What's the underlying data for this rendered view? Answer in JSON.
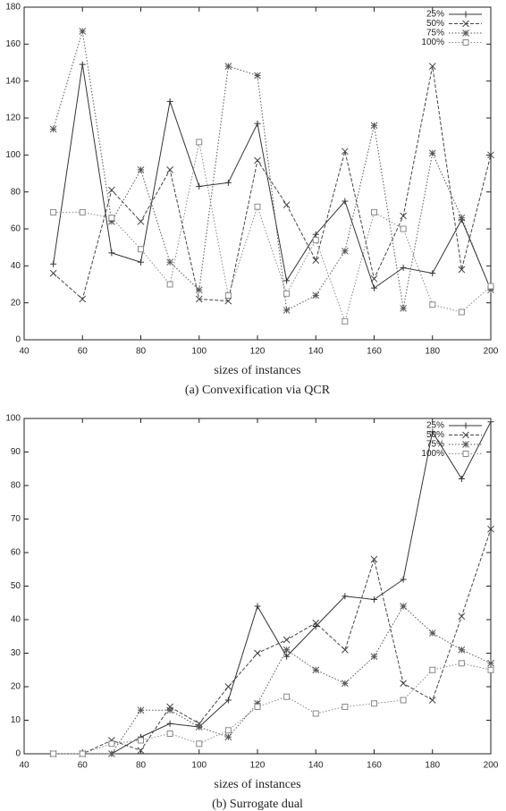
{
  "chart_data": [
    {
      "type": "line",
      "xlabel": "sizes of instances",
      "caption": "(a) Convexification via QCR",
      "x": [
        50,
        60,
        70,
        80,
        90,
        100,
        110,
        120,
        130,
        140,
        150,
        160,
        170,
        180,
        190,
        200
      ],
      "xlim": [
        40,
        200
      ],
      "xticks": [
        40,
        60,
        80,
        100,
        120,
        140,
        160,
        180,
        200
      ],
      "ylim": [
        0,
        180
      ],
      "yticks": [
        0,
        20,
        40,
        60,
        80,
        100,
        120,
        140,
        160,
        180
      ],
      "grid": false,
      "legend": "top-right",
      "series": [
        {
          "name": "25%",
          "color": "#333333",
          "line_style": "solid",
          "marker": "plus",
          "values": [
            41,
            149,
            47,
            42,
            129,
            83,
            85,
            117,
            32,
            57,
            75,
            28,
            39,
            36,
            65,
            27
          ]
        },
        {
          "name": "50%",
          "color": "#444444",
          "line_style": "dashed",
          "marker": "x",
          "values": [
            36,
            22,
            81,
            64,
            92,
            22,
            21,
            97,
            73,
            43,
            102,
            33,
            67,
            148,
            38,
            100
          ]
        },
        {
          "name": "75%",
          "color": "#555555",
          "line_style": "dotted",
          "marker": "star",
          "values": [
            114,
            167,
            64,
            92,
            42,
            27,
            148,
            143,
            16,
            24,
            48,
            116,
            17,
            101,
            66,
            27
          ]
        },
        {
          "name": "100%",
          "color": "#888888",
          "line_style": "dotted",
          "marker": "square",
          "values": [
            69,
            69,
            66,
            49,
            30,
            107,
            24,
            72,
            25,
            54,
            10,
            69,
            60,
            19,
            15,
            29
          ]
        }
      ]
    },
    {
      "type": "line",
      "xlabel": "sizes of instances",
      "caption": "(b) Surrogate dual",
      "x": [
        50,
        60,
        70,
        80,
        90,
        100,
        110,
        120,
        130,
        140,
        150,
        160,
        170,
        180,
        190,
        200
      ],
      "xlim": [
        40,
        200
      ],
      "xticks": [
        40,
        60,
        80,
        100,
        120,
        140,
        160,
        180,
        200
      ],
      "ylim": [
        0,
        100
      ],
      "yticks": [
        0,
        10,
        20,
        30,
        40,
        50,
        60,
        70,
        80,
        90,
        100
      ],
      "grid": false,
      "legend": "top-right",
      "series": [
        {
          "name": "25%",
          "color": "#333333",
          "line_style": "solid",
          "marker": "plus",
          "values": [
            0,
            0,
            0,
            5,
            9,
            8,
            16,
            44,
            29,
            38,
            47,
            46,
            52,
            96,
            82,
            99
          ]
        },
        {
          "name": "50%",
          "color": "#444444",
          "line_style": "dashed",
          "marker": "x",
          "values": [
            0,
            0,
            4,
            1,
            14,
            9,
            20,
            30,
            34,
            39,
            31,
            58,
            21,
            16,
            41,
            67
          ]
        },
        {
          "name": "75%",
          "color": "#555555",
          "line_style": "dotted",
          "marker": "star",
          "values": [
            0,
            0,
            0,
            13,
            13,
            8,
            5,
            15,
            31,
            25,
            21,
            29,
            44,
            36,
            31,
            27
          ]
        },
        {
          "name": "100%",
          "color": "#888888",
          "line_style": "dotted",
          "marker": "square",
          "values": [
            0,
            0,
            3,
            4,
            6,
            3,
            7,
            14,
            17,
            12,
            14,
            15,
            16,
            25,
            27,
            25
          ]
        }
      ]
    }
  ]
}
